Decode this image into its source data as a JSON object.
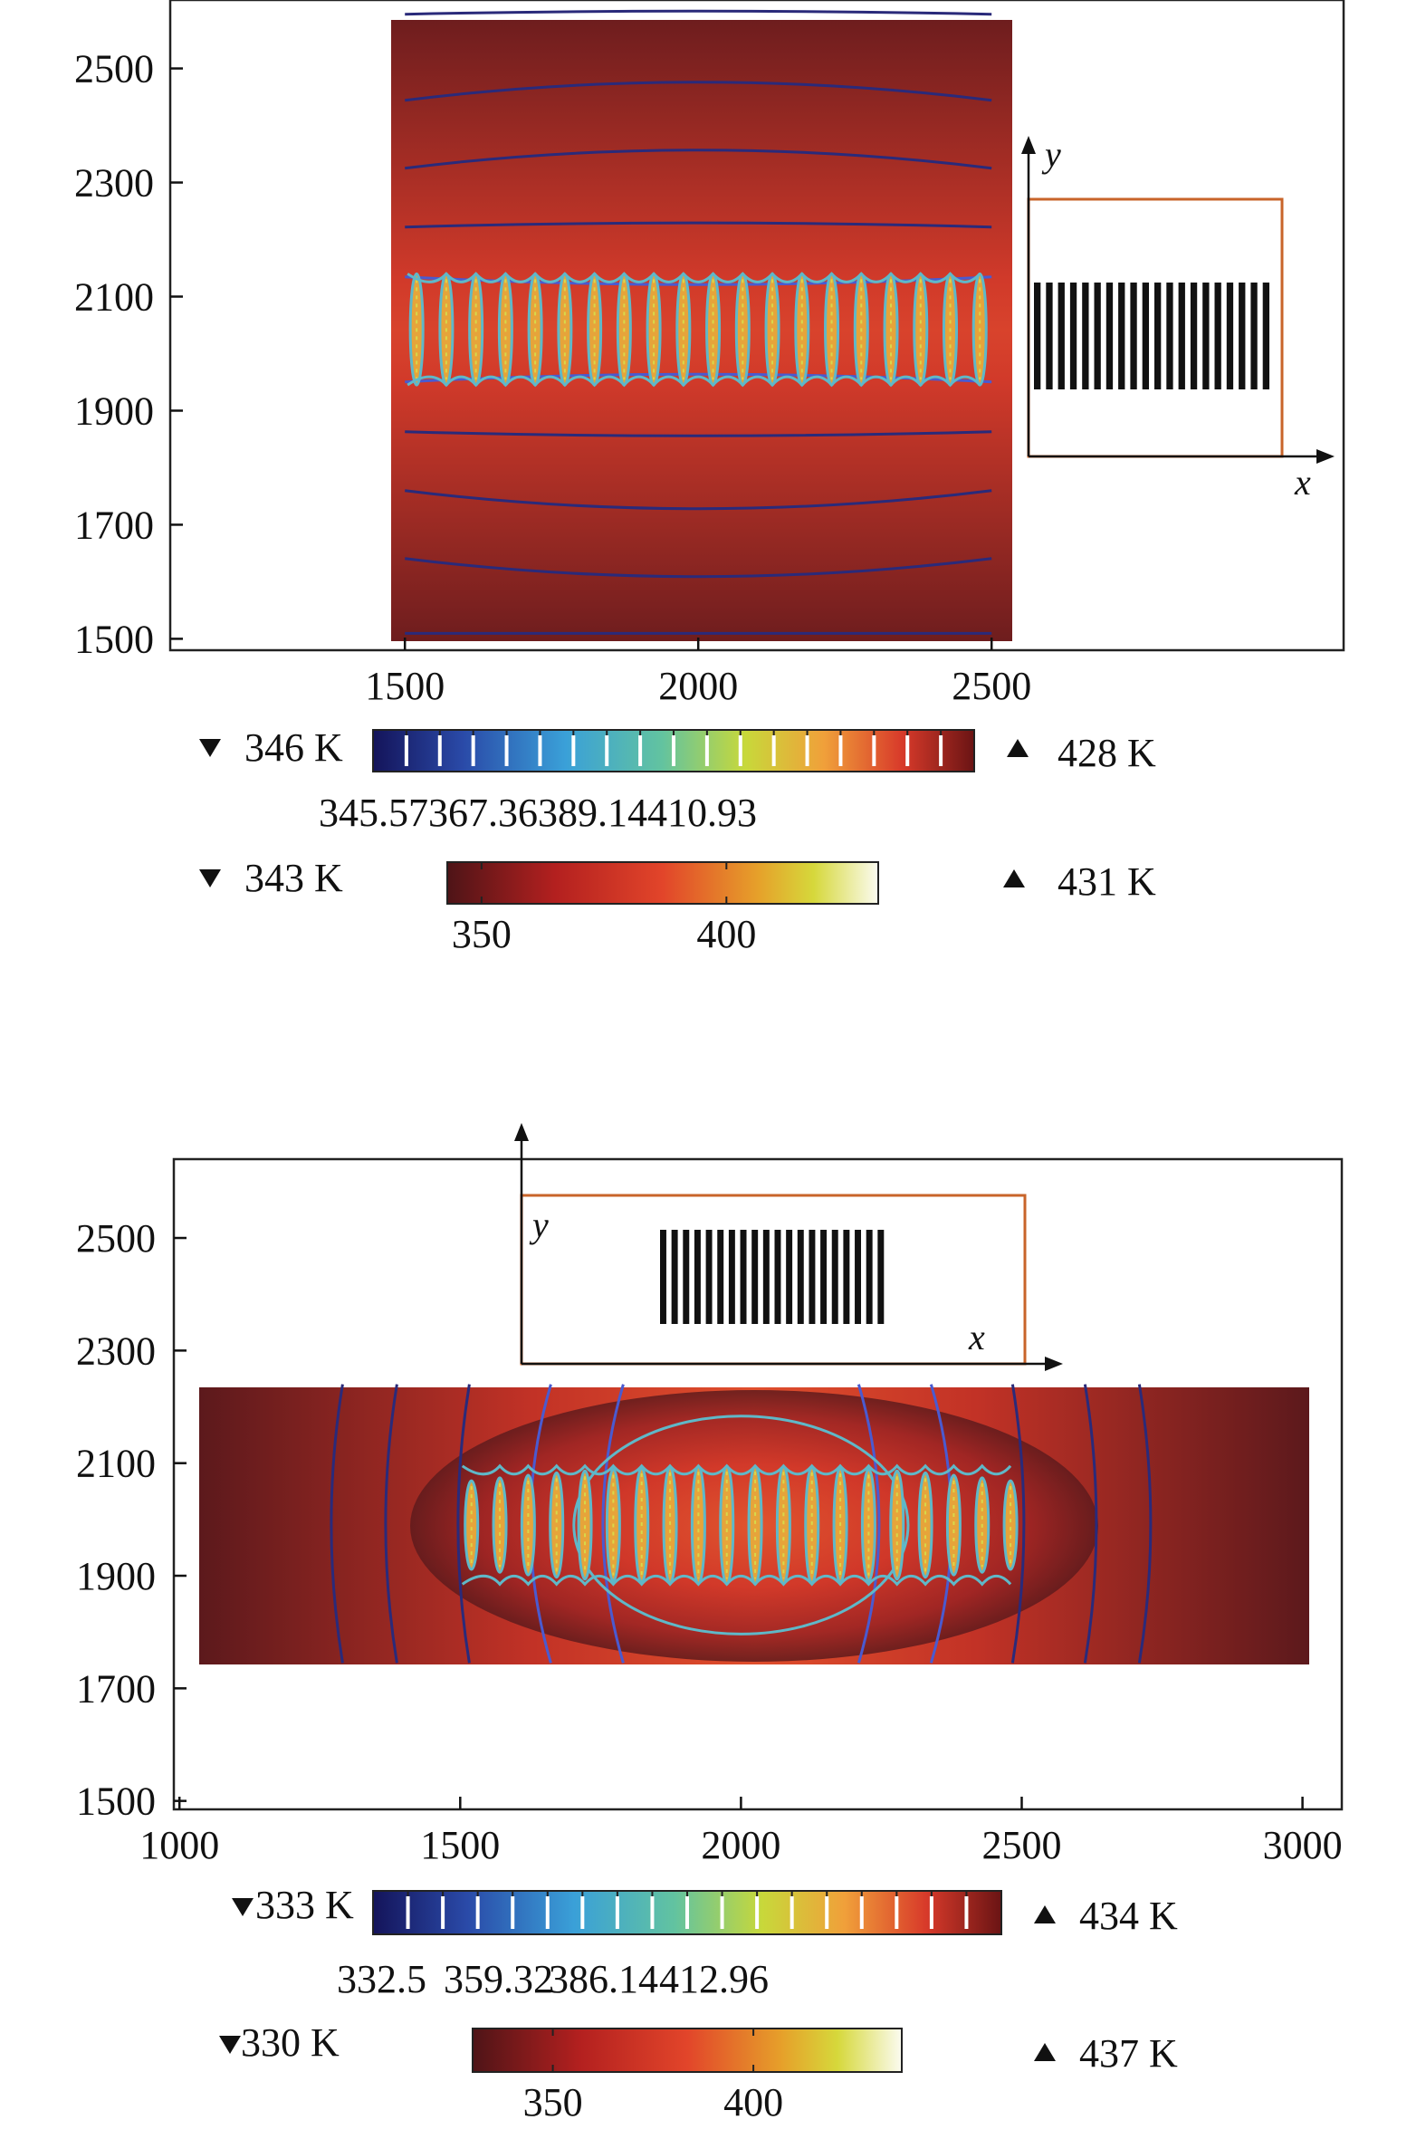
{
  "chart_data": [
    {
      "type": "heatmap",
      "title": "",
      "xlabel": "",
      "ylabel": "",
      "x_ticks": [
        1500,
        2000,
        2500
      ],
      "y_ticks": [
        1500,
        1700,
        1900,
        2100,
        2300,
        2500
      ],
      "xlim": [
        1100,
        3100
      ],
      "ylim": [
        1480,
        2620
      ],
      "domain": {
        "x": [
          1500,
          2500
        ],
        "y": [
          1500,
          2610
        ]
      },
      "heater_array": {
        "x": [
          1520,
          2480
        ],
        "y": [
          1945,
          2140
        ],
        "strips": 20
      },
      "contour_legend": {
        "min_label": "346 K",
        "max_label": "428 K",
        "tick_values": [
          345.57,
          367.36,
          389.14,
          410.93
        ],
        "tick_text": "345.57367.36389.14410.93"
      },
      "surface_legend": {
        "min_label": "343 K",
        "max_label": "431 K",
        "range": [
          343,
          431
        ],
        "ticks": [
          350,
          400
        ]
      },
      "inset": {
        "x_label": "x",
        "y_label": "y",
        "strips": 20,
        "orientation": "vertical"
      }
    },
    {
      "type": "heatmap",
      "title": "",
      "xlabel": "",
      "ylabel": "",
      "x_ticks": [
        1000,
        1500,
        2000,
        2500,
        3000
      ],
      "y_ticks": [
        1500,
        1700,
        1900,
        2100,
        2300,
        2500
      ],
      "xlim": [
        990,
        3070
      ],
      "ylim": [
        1485,
        2640
      ],
      "domain": {
        "x": [
          1000,
          3000
        ],
        "y": [
          1745,
          2240
        ]
      },
      "heater_array": {
        "x": [
          1520,
          2480
        ],
        "y": [
          1885,
          2095
        ],
        "strips": 20
      },
      "contour_legend": {
        "min_label": "333 K",
        "max_label": "434 K",
        "tick_values": [
          332.5,
          359.32,
          386.14,
          412.96
        ],
        "tick_text": [
          "332.5",
          "359.32",
          "386.14",
          "412.96"
        ]
      },
      "surface_legend": {
        "min_label": "330 K",
        "max_label": "437 K",
        "range": [
          330,
          437
        ],
        "ticks": [
          350,
          400
        ]
      },
      "inset": {
        "x_label": "x",
        "y_label": "y",
        "strips": 20,
        "orientation": "vertical"
      }
    }
  ],
  "colors": {
    "surface_low": "#5a1a1c",
    "surface_mid": "#c63227",
    "surface_high": "#d8e14a",
    "inset_frame": "#c8642a",
    "contour_dark": "#2a2a7a",
    "contour_light": "#5fb8c8"
  }
}
